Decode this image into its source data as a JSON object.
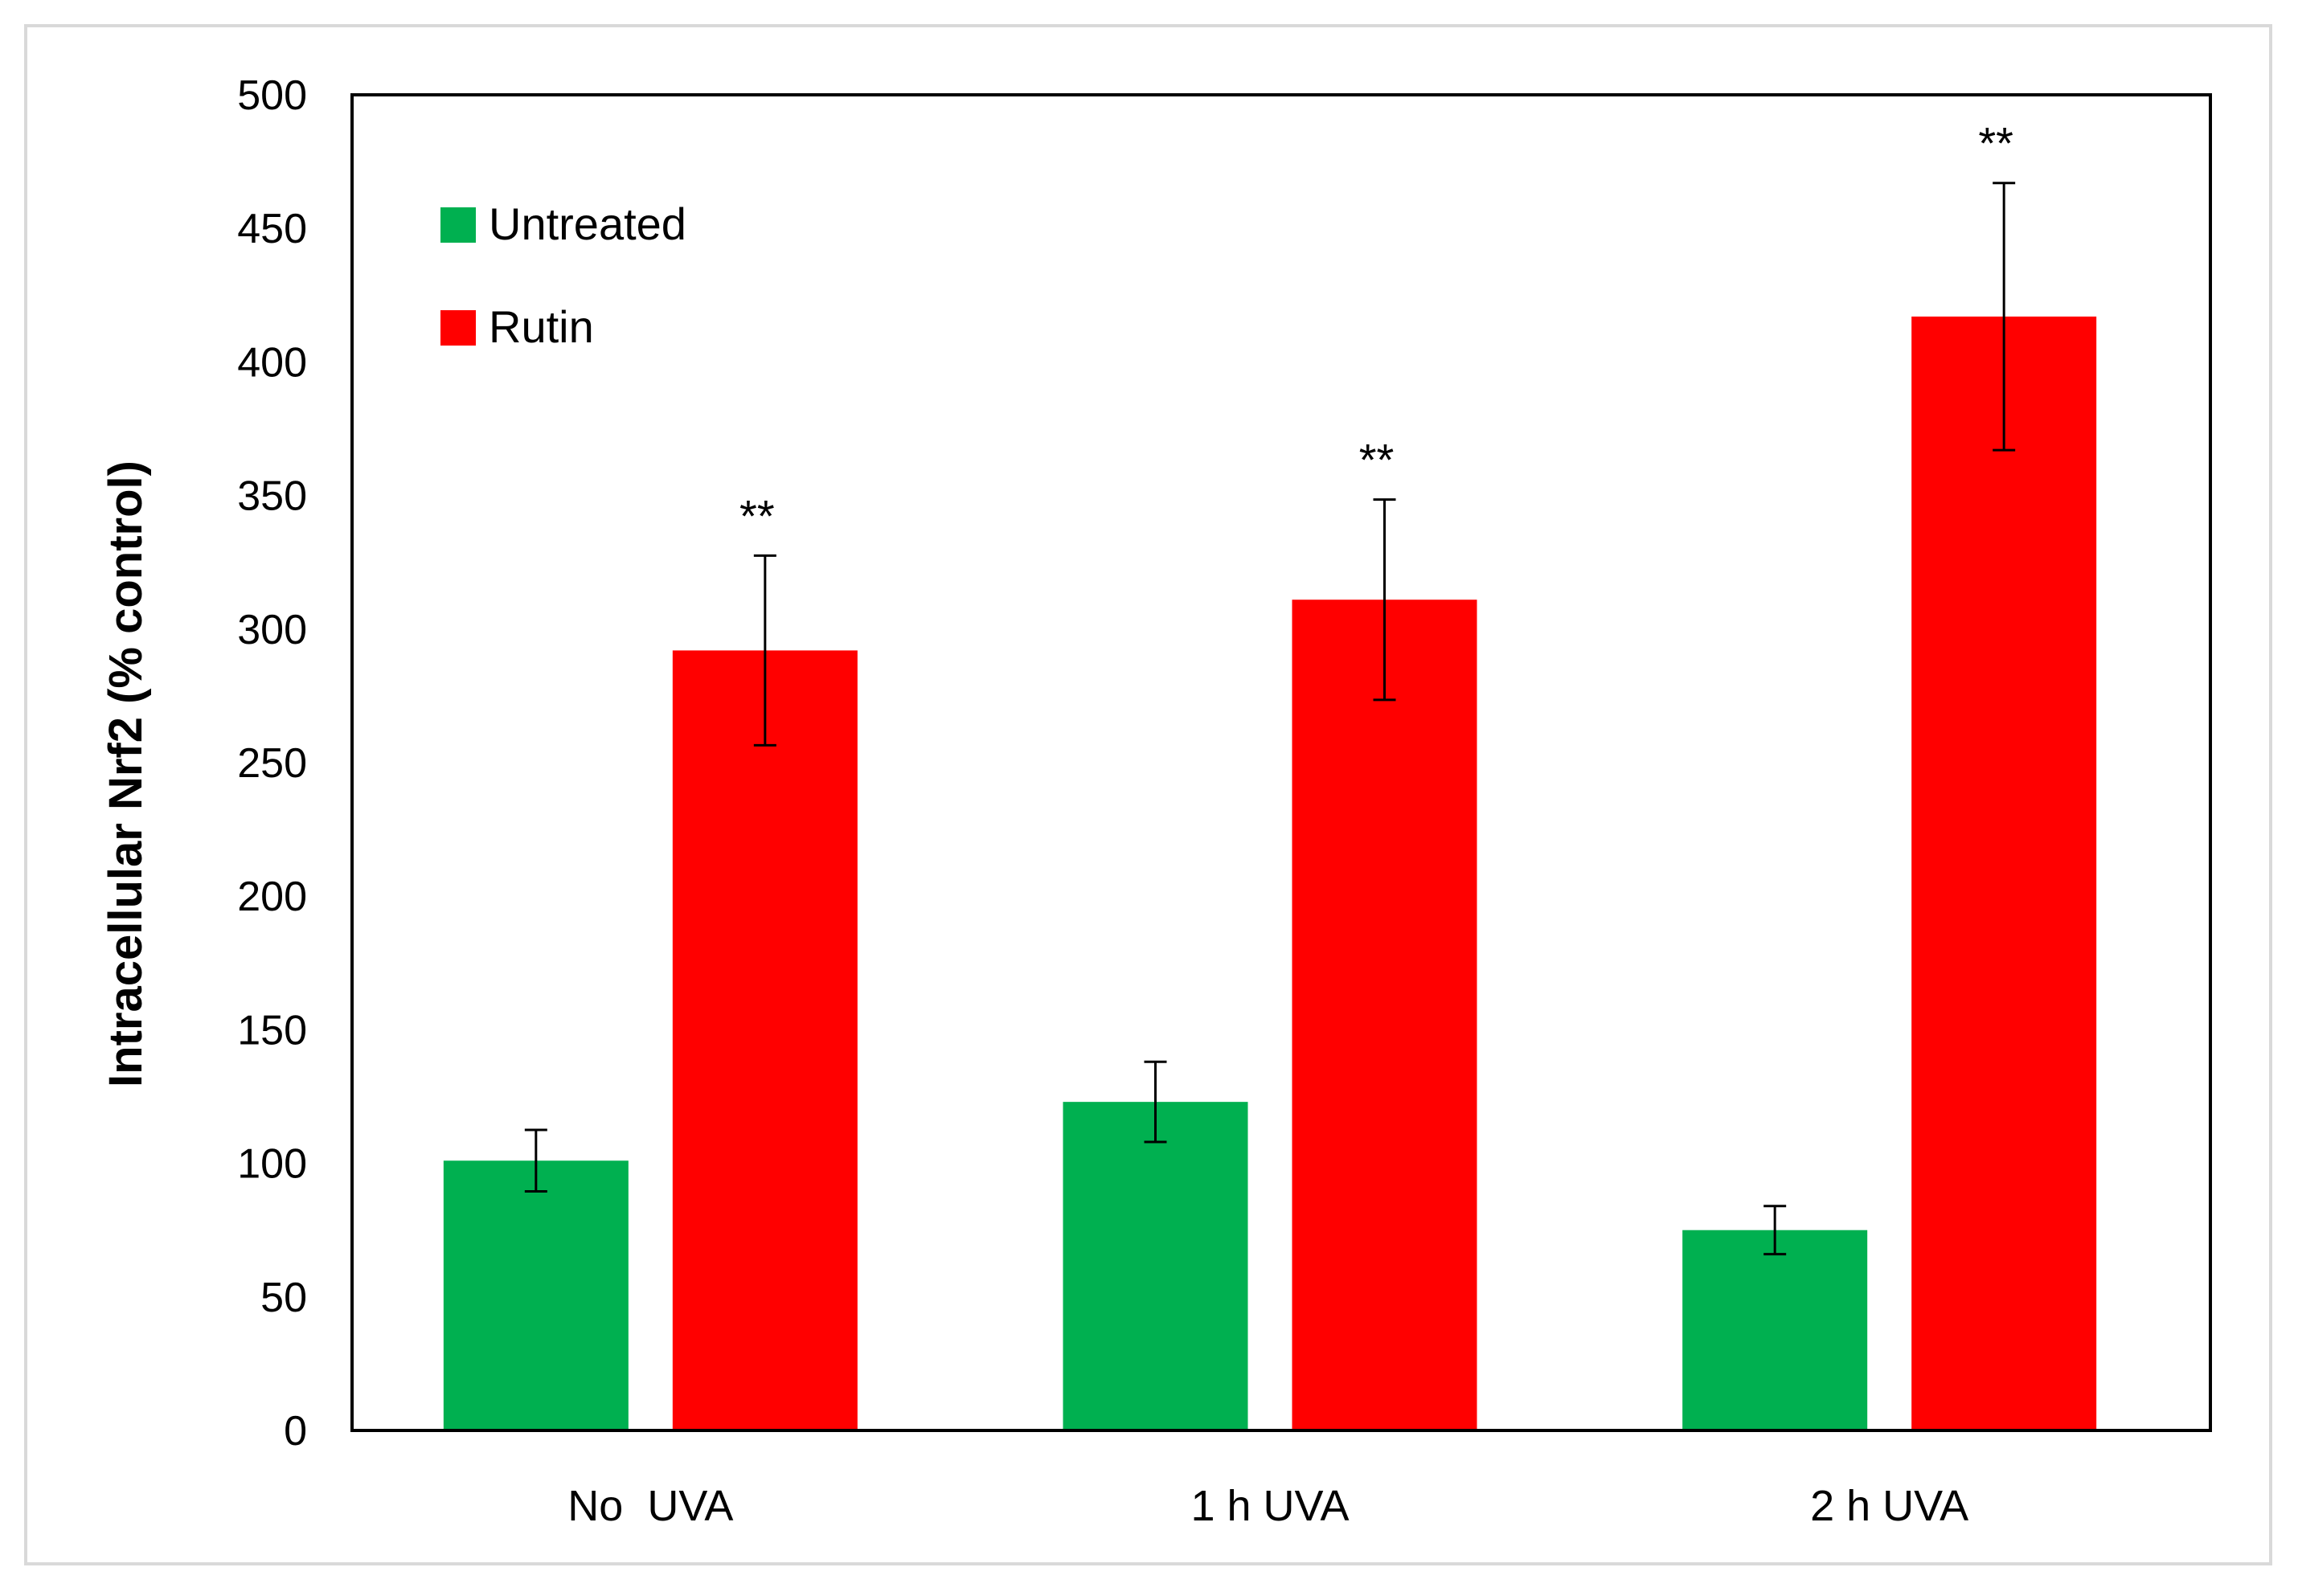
{
  "chart_data": {
    "type": "bar",
    "title": "",
    "xlabel": "",
    "ylabel": "Intracellular Nrf2 (% control)",
    "ylim": [
      0,
      500
    ],
    "ytick_step": 50,
    "yticks": [
      "0",
      "50",
      "100",
      "150",
      "200",
      "250",
      "300",
      "350",
      "400",
      "450",
      "500"
    ],
    "categories": [
      "No  UVA",
      "1 h UVA",
      "2 h UVA"
    ],
    "series": [
      {
        "name": "Untreated",
        "color": "#00b050",
        "values": [
          101,
          123,
          75
        ],
        "errors": [
          11.5,
          15,
          9
        ]
      },
      {
        "name": "Rutin",
        "color": "#ff0000",
        "values": [
          292,
          311,
          417
        ],
        "errors": [
          35.5,
          37.5,
          50
        ]
      }
    ],
    "annotations": [
      {
        "series": "Rutin",
        "category": "No  UVA",
        "text": "**"
      },
      {
        "series": "Rutin",
        "category": "1 h UVA",
        "text": "**"
      },
      {
        "series": "Rutin",
        "category": "2 h UVA",
        "text": "**"
      }
    ],
    "legend_position": "top-left",
    "grid": false
  }
}
